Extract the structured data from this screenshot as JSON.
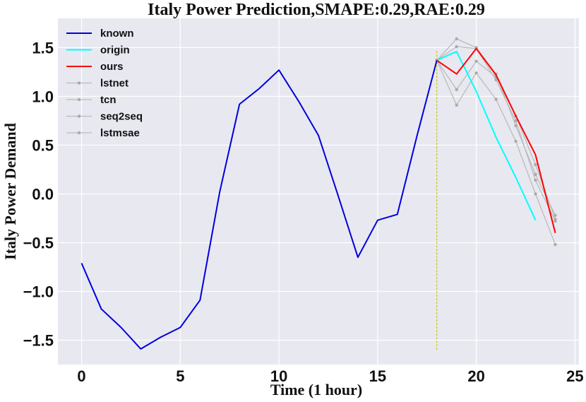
{
  "chart_data": {
    "type": "line",
    "title": "Italy Power Prediction,SMAPE:0.29,RAE:0.29",
    "xlabel": "Time (1 hour)",
    "ylabel": "Italy Power Demand",
    "xlim": [
      -1.2,
      25.2
    ],
    "ylim": [
      -1.75,
      1.8
    ],
    "xticks": [
      0,
      5,
      10,
      15,
      20,
      25
    ],
    "xtick_labels": [
      "0",
      "5",
      "10",
      "15",
      "20",
      "25"
    ],
    "yticks": [
      -1.5,
      -1.0,
      -0.5,
      0.0,
      0.5,
      1.0,
      1.5
    ],
    "ytick_labels": [
      "−1.5",
      "−1.0",
      "−0.5",
      "0.0",
      "0.5",
      "1.0",
      "1.5"
    ],
    "grid": true,
    "legend_position": "top-left",
    "vline": {
      "x": 18,
      "y_range": [
        -1.6,
        1.48
      ],
      "color": "#c8c800"
    },
    "series": [
      {
        "name": "known",
        "color": "#0000dd",
        "width": 2,
        "marker": false,
        "x": [
          0,
          1,
          2,
          3,
          4,
          5,
          6,
          7,
          8,
          9,
          10,
          11,
          12,
          13,
          14,
          15,
          16,
          17,
          18
        ],
        "y": [
          -0.71,
          -1.18,
          -1.37,
          -1.59,
          -1.47,
          -1.37,
          -1.09,
          0.02,
          0.92,
          1.08,
          1.27,
          0.95,
          0.6,
          -0.02,
          -0.65,
          -0.27,
          -0.21,
          0.6,
          1.37
        ]
      },
      {
        "name": "origin",
        "color": "#00ffff",
        "width": 2,
        "marker": false,
        "x": [
          18,
          19,
          20,
          21,
          22,
          23
        ],
        "y": [
          1.37,
          1.46,
          1.05,
          0.58,
          0.17,
          -0.27
        ]
      },
      {
        "name": "ours",
        "color": "#ff0000",
        "width": 2,
        "marker": false,
        "x": [
          18,
          19,
          20,
          21,
          22,
          23,
          24
        ],
        "y": [
          1.37,
          1.23,
          1.49,
          1.22,
          0.8,
          0.4,
          -0.4
        ]
      },
      {
        "name": "lstnet",
        "color": "#bbbbbb",
        "width": 1.3,
        "marker": true,
        "x": [
          18,
          19,
          20,
          21,
          22,
          23,
          24
        ],
        "y": [
          1.37,
          1.07,
          1.36,
          1.2,
          0.8,
          0.3,
          -0.26
        ]
      },
      {
        "name": "tcn",
        "color": "#bbbbbb",
        "width": 1.3,
        "marker": true,
        "x": [
          18,
          19,
          20,
          21,
          22,
          23,
          24
        ],
        "y": [
          1.37,
          0.91,
          1.24,
          0.97,
          0.54,
          0.0,
          -0.52
        ]
      },
      {
        "name": "seq2seq",
        "color": "#bbbbbb",
        "width": 1.3,
        "marker": true,
        "x": [
          18,
          19,
          20,
          21,
          22,
          23,
          24
        ],
        "y": [
          1.37,
          1.59,
          1.5,
          1.23,
          0.7,
          0.2,
          -0.22
        ]
      },
      {
        "name": "lstmsae",
        "color": "#bbbbbb",
        "width": 1.3,
        "marker": true,
        "x": [
          18,
          19,
          20,
          21,
          22,
          23,
          24
        ],
        "y": [
          1.37,
          1.51,
          1.49,
          1.17,
          0.75,
          0.14,
          -0.28
        ]
      }
    ]
  }
}
